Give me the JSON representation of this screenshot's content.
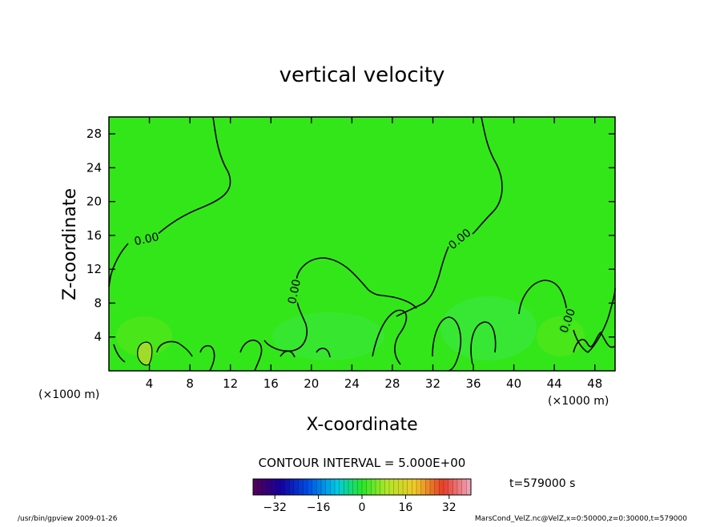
{
  "chart_data": {
    "type": "heatmap",
    "title": "vertical velocity",
    "xlabel": "X-coordinate",
    "ylabel": "Z-coordinate",
    "x_unit_left": "(×1000 m)",
    "x_unit_right": "(×1000 m)",
    "xlim": [
      0,
      50
    ],
    "ylim": [
      0,
      30
    ],
    "x_ticks": [
      4,
      8,
      12,
      16,
      20,
      24,
      28,
      32,
      36,
      40,
      44,
      48
    ],
    "y_ticks": [
      4,
      8,
      12,
      16,
      20,
      24,
      28
    ],
    "contour_interval": "CONTOUR INTERVAL = 5.000E+00",
    "contour_labels": [
      "0.00",
      "0.00",
      "0.00",
      "0.00"
    ],
    "time_label": "t=579000 s",
    "colorbar": {
      "range": [
        -40,
        40
      ],
      "ticks": [
        -32,
        -16,
        0,
        16,
        32
      ],
      "tick_labels": [
        "−32",
        "−16",
        "0",
        "16",
        "32"
      ]
    },
    "footer_left": "/usr/bin/gpview  2009-01-26",
    "footer_right": "MarsCond_VelZ.nc@VelZ,x=0:50000,z=0:30000,t=579000",
    "colors": {
      "field_green": "#33e61a",
      "contour": "#000000"
    }
  }
}
